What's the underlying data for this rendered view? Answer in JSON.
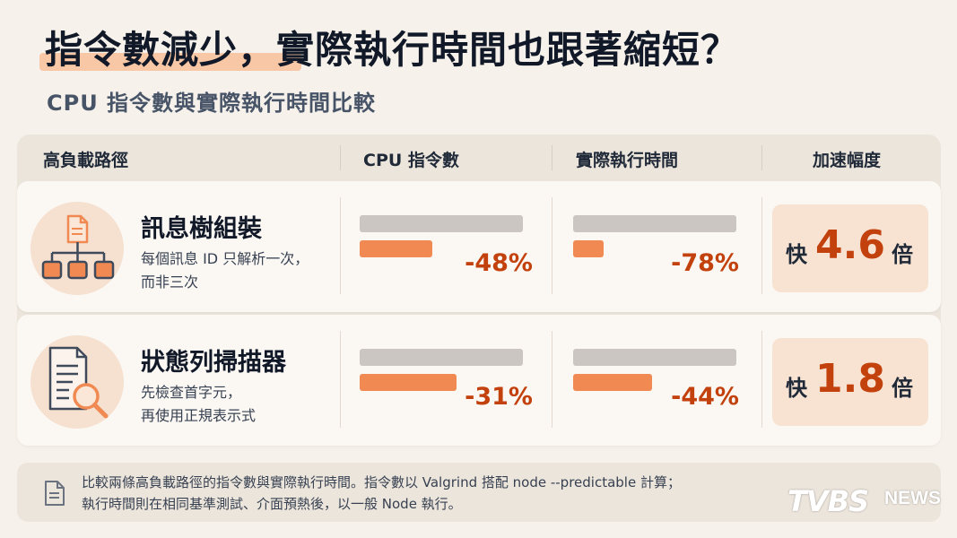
{
  "header": {
    "title": "指令數減少，實際執行時間也跟著縮短？",
    "subtitle": "CPU 指令數與實際執行時間比較"
  },
  "table": {
    "columns": [
      "高負載路徑",
      "CPU 指令數",
      "實際執行時間",
      "加速幅度"
    ],
    "rows": [
      {
        "name": "訊息樹組裝",
        "desc_line1": "每個訊息 ID 只解析一次，",
        "desc_line2": "而非三次",
        "icon": "message-tree-icon",
        "cpu_change": "-48%",
        "cpu_after_fraction": 0.52,
        "time_change": "-78%",
        "time_after_fraction": 0.22,
        "speed_prefix": "快",
        "speed_value": "4.6",
        "speed_suffix": "倍"
      },
      {
        "name": "狀態列掃描器",
        "desc_line1": "先檢查首字元，",
        "desc_line2": "再使用正規表示式",
        "icon": "document-scan-icon",
        "cpu_change": "-31%",
        "cpu_after_fraction": 0.69,
        "time_change": "-44%",
        "time_after_fraction": 0.56,
        "speed_prefix": "快",
        "speed_value": "1.8",
        "speed_suffix": "倍"
      }
    ]
  },
  "footer": {
    "icon": "document-icon",
    "line1": "比較兩條高負載路徑的指令數與實際執行時間。指令數以 Valgrind 搭配 node --predictable 計算；",
    "line2": "執行時間則在相同基準測試、介面預熱後，以一般 Node 執行。"
  },
  "logo": {
    "brand": "TVBS",
    "suffix": "NEWS"
  },
  "colors": {
    "accent": "#c2410c",
    "bar_after": "#f08a52",
    "bar_before": "#cbc6c1",
    "highlight": "#f8c7a6"
  }
}
